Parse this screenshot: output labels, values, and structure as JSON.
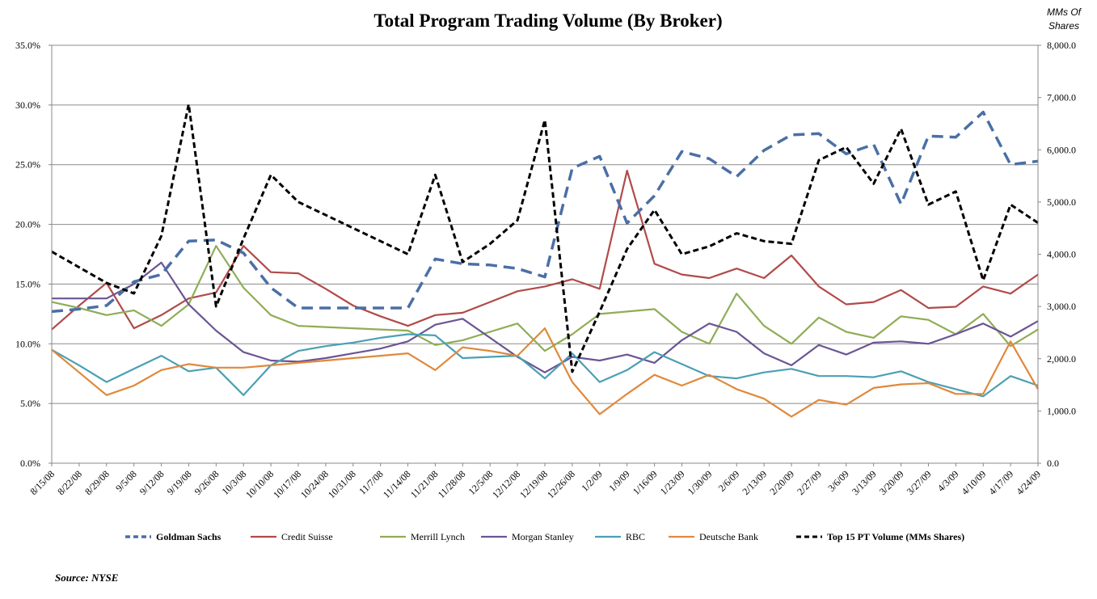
{
  "chart_data": {
    "type": "line",
    "title": "Total Program Trading Volume  (By Broker)",
    "y2label_line1": "MMs Of",
    "y2label_line2": "Shares",
    "source": "Source: NYSE",
    "ylim": [
      0,
      35
    ],
    "y2lim": [
      0,
      8000
    ],
    "yticks": [
      0,
      5,
      10,
      15,
      20,
      25,
      30,
      35
    ],
    "ytick_labels": [
      "0.0%",
      "5.0%",
      "10.0%",
      "15.0%",
      "20.0%",
      "25.0%",
      "30.0%",
      "35.0%"
    ],
    "y2ticks": [
      0,
      1000,
      2000,
      3000,
      4000,
      5000,
      6000,
      7000,
      8000
    ],
    "y2tick_labels": [
      "0.0",
      "1,000.0",
      "2,000.0",
      "3,000.0",
      "4,000.0",
      "5,000.0",
      "6,000.0",
      "7,000.0",
      "8,000.0"
    ],
    "grid": true,
    "legend_position": "bottom",
    "x": [
      "8/15/08",
      "8/22/08",
      "8/29/08",
      "9/5/08",
      "9/12/08",
      "9/19/08",
      "9/26/08",
      "10/3/08",
      "10/10/08",
      "10/17/08",
      "10/24/08",
      "10/31/08",
      "11/7/08",
      "11/14/08",
      "11/21/08",
      "11/28/08",
      "12/5/08",
      "12/12/08",
      "12/19/08",
      "12/26/08",
      "1/2/09",
      "1/9/09",
      "1/16/09",
      "1/23/09",
      "1/30/09",
      "2/6/09",
      "2/13/09",
      "2/20/09",
      "2/27/09",
      "3/6/09",
      "3/13/09",
      "3/20/09",
      "3/27/09",
      "4/3/09",
      "4/10/09",
      "4/17/09",
      "4/24/09"
    ],
    "series": [
      {
        "name": "Goldman Sachs",
        "axis": "left",
        "color": "#4a6fa5",
        "style": "dashed-thick",
        "values": [
          12.7,
          12.9,
          13.2,
          15.2,
          15.8,
          18.6,
          18.7,
          17.6,
          14.7,
          13.0,
          13.0,
          13.0,
          13.0,
          13.0,
          17.1,
          16.7,
          16.6,
          16.3,
          15.6,
          24.7,
          25.7,
          20.1,
          22.4,
          26.1,
          25.5,
          24.0,
          26.2,
          27.5,
          27.6,
          25.9,
          26.7,
          21.7,
          27.4,
          27.3,
          29.4,
          25.0,
          25.3
        ]
      },
      {
        "name": "Credit Suisse",
        "axis": "left",
        "color": "#b24a4a",
        "style": "solid",
        "values": [
          11.2,
          13.2,
          15.1,
          11.3,
          12.4,
          13.8,
          14.3,
          18.2,
          16.0,
          15.9,
          14.6,
          13.2,
          12.3,
          11.5,
          12.4,
          12.6,
          13.5,
          14.4,
          14.8,
          15.4,
          14.6,
          24.5,
          16.7,
          15.8,
          15.5,
          16.3,
          15.5,
          17.4,
          14.8,
          13.3,
          13.5,
          14.5,
          13.0,
          13.1,
          14.8,
          14.2,
          15.8
        ]
      },
      {
        "name": "Merrill Lynch",
        "axis": "left",
        "color": "#8fad56",
        "style": "solid",
        "values": [
          13.5,
          13.0,
          12.4,
          12.8,
          11.5,
          13.3,
          18.2,
          14.7,
          12.4,
          11.5,
          11.4,
          11.3,
          11.2,
          11.1,
          9.9,
          10.3,
          11.0,
          11.7,
          9.4,
          10.8,
          12.5,
          12.7,
          12.9,
          11.0,
          10.0,
          14.2,
          11.5,
          10.0,
          12.2,
          11.0,
          10.5,
          12.3,
          12.0,
          10.8,
          12.5,
          9.8,
          11.2
        ]
      },
      {
        "name": "Morgan Stanley",
        "axis": "left",
        "color": "#6b5593",
        "style": "solid",
        "values": [
          13.8,
          13.8,
          13.8,
          15.0,
          16.8,
          13.3,
          11.1,
          9.3,
          8.6,
          8.5,
          8.8,
          9.2,
          9.6,
          10.2,
          11.6,
          12.1,
          10.5,
          8.9,
          7.6,
          8.9,
          8.6,
          9.1,
          8.4,
          10.3,
          11.7,
          11.0,
          9.2,
          8.2,
          9.9,
          9.1,
          10.1,
          10.2,
          10.0,
          10.8,
          11.7,
          10.6,
          11.9
        ]
      },
      {
        "name": "RBC",
        "axis": "left",
        "color": "#4aa0b5",
        "style": "solid",
        "values": [
          9.5,
          8.2,
          6.8,
          7.9,
          9.0,
          7.7,
          8.0,
          5.7,
          8.2,
          9.4,
          9.8,
          10.1,
          10.5,
          10.8,
          10.7,
          8.8,
          8.9,
          9.0,
          7.1,
          9.2,
          6.8,
          7.8,
          9.3,
          8.3,
          7.3,
          7.1,
          7.6,
          7.9,
          7.3,
          7.3,
          7.2,
          7.7,
          6.8,
          6.2,
          5.6,
          7.3,
          6.5
        ]
      },
      {
        "name": "Deutsche Bank",
        "axis": "left",
        "color": "#e0893b",
        "style": "solid",
        "values": [
          9.5,
          7.6,
          5.7,
          6.5,
          7.8,
          8.3,
          8.0,
          8.0,
          8.2,
          8.4,
          8.6,
          8.8,
          9.0,
          9.2,
          7.8,
          9.7,
          9.4,
          9.0,
          11.3,
          6.8,
          4.1,
          5.8,
          7.4,
          6.5,
          7.4,
          6.2,
          5.4,
          3.9,
          5.3,
          4.9,
          6.3,
          6.6,
          6.7,
          5.8,
          5.8,
          10.2,
          6.2
        ]
      },
      {
        "name": "Top 15 PT Volume (MMs Shares)",
        "axis": "right",
        "color": "#000000",
        "style": "dashed-bold",
        "values": [
          4050,
          3750,
          3450,
          3250,
          4350,
          6870,
          3000,
          4300,
          5520,
          5000,
          4750,
          4500,
          4250,
          4000,
          5520,
          3850,
          4200,
          4650,
          6570,
          1750,
          2900,
          4100,
          4850,
          4000,
          4150,
          4400,
          4250,
          4200,
          5800,
          6050,
          5350,
          6400,
          4950,
          5200,
          3500,
          4950,
          4600
        ]
      }
    ]
  }
}
